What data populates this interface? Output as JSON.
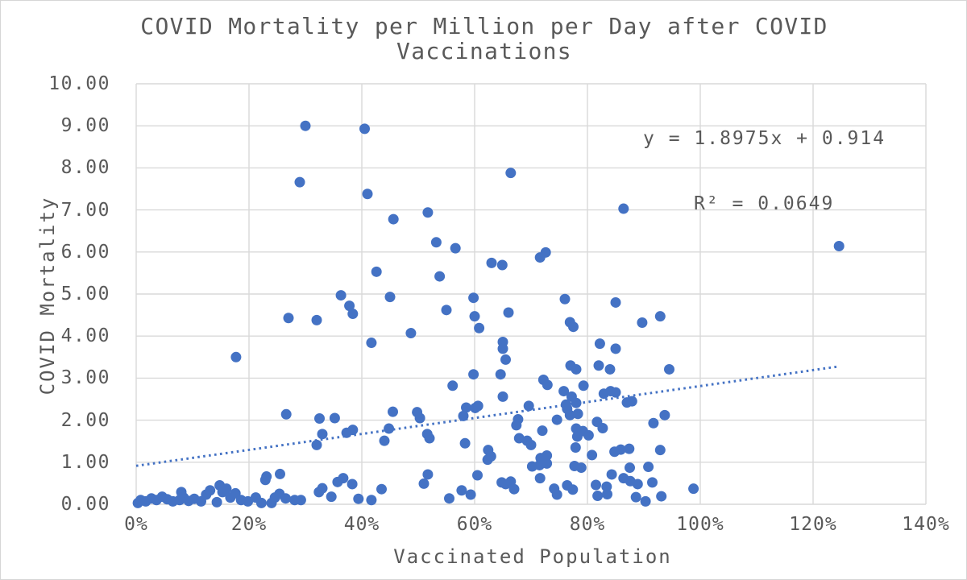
{
  "chart": {
    "title_line1": "COVID Mortality per Million per Day after COVID",
    "title_line2": "Vaccinations",
    "equation_line1": "y = 1.8975x + 0.914",
    "equation_line2": "R² = 0.0649",
    "x_axis": {
      "label": "Vaccinated Population",
      "tick_labels": [
        "0%",
        "20%",
        "40%",
        "60%",
        "80%",
        "100%",
        "120%",
        "140%"
      ],
      "min": 0,
      "max": 140,
      "step": 20
    },
    "y_axis": {
      "label": "COVID Mortality",
      "tick_labels": [
        "0.00",
        "1.00",
        "2.00",
        "3.00",
        "4.00",
        "5.00",
        "6.00",
        "7.00",
        "8.00",
        "9.00",
        "10.00"
      ],
      "min": 0,
      "max": 10,
      "step": 1
    },
    "colors": {
      "point": "#4472C4",
      "trendline": "#4472C4",
      "gridline": "#D9D9D9",
      "text": "#595959",
      "background": "#FFFFFF"
    }
  },
  "chart_data": {
    "type": "scatter",
    "title": "COVID Mortality per Million per Day after COVID Vaccinations",
    "xlabel": "Vaccinated Population",
    "ylabel": "COVID Mortality",
    "xlim": [
      0,
      140
    ],
    "ylim": [
      0,
      10
    ],
    "x_unit": "percent",
    "grid": true,
    "legend": false,
    "trendline": {
      "slope": 1.8975,
      "intercept": 0.914,
      "x_start_pct": 0,
      "x_end_pct": 124.6,
      "style": "dotted",
      "label": "y = 1.8975x + 0.914, R² = 0.0649"
    },
    "points": [
      [
        0.3,
        0.03
      ],
      [
        0.8,
        0.1
      ],
      [
        1.7,
        0.07
      ],
      [
        2.7,
        0.14
      ],
      [
        3.6,
        0.1
      ],
      [
        4.6,
        0.18
      ],
      [
        5.5,
        0.12
      ],
      [
        6.5,
        0.07
      ],
      [
        7.7,
        0.1
      ],
      [
        8.0,
        0.29
      ],
      [
        8.4,
        0.16
      ],
      [
        9.3,
        0.08
      ],
      [
        10.3,
        0.13
      ],
      [
        11.5,
        0.07
      ],
      [
        12.4,
        0.23
      ],
      [
        13.1,
        0.33
      ],
      [
        14.3,
        0.05
      ],
      [
        14.8,
        0.45
      ],
      [
        15.3,
        0.29
      ],
      [
        16.0,
        0.37
      ],
      [
        16.7,
        0.16
      ],
      [
        17.6,
        0.26
      ],
      [
        18.6,
        0.1
      ],
      [
        19.8,
        0.07
      ],
      [
        21.2,
        0.16
      ],
      [
        22.2,
        0.03
      ],
      [
        22.9,
        0.58
      ],
      [
        23.1,
        0.66
      ],
      [
        24.0,
        0.03
      ],
      [
        24.6,
        0.16
      ],
      [
        25.4,
        0.25
      ],
      [
        25.5,
        0.72
      ],
      [
        26.5,
        0.14
      ],
      [
        28.1,
        0.1
      ],
      [
        29.2,
        0.1
      ],
      [
        32.4,
        0.29
      ],
      [
        33.0,
        0.38
      ],
      [
        34.6,
        0.18
      ],
      [
        35.7,
        0.53
      ],
      [
        36.7,
        0.62
      ],
      [
        38.3,
        0.48
      ],
      [
        39.4,
        0.13
      ],
      [
        41.7,
        0.1
      ],
      [
        43.5,
        0.36
      ],
      [
        51.0,
        0.49
      ],
      [
        51.7,
        0.71
      ],
      [
        55.5,
        0.14
      ],
      [
        57.7,
        0.33
      ],
      [
        59.3,
        0.23
      ],
      [
        60.5,
        0.69
      ],
      [
        64.8,
        0.52
      ],
      [
        65.5,
        0.48
      ],
      [
        66.4,
        0.54
      ],
      [
        67.0,
        0.36
      ],
      [
        70.2,
        0.9
      ],
      [
        71.5,
        0.93
      ],
      [
        71.6,
        0.62
      ],
      [
        72.8,
        0.97
      ],
      [
        74.1,
        0.37
      ],
      [
        74.6,
        0.23
      ],
      [
        76.4,
        0.45
      ],
      [
        77.4,
        0.35
      ],
      [
        77.7,
        0.91
      ],
      [
        78.9,
        0.87
      ],
      [
        81.5,
        0.46
      ],
      [
        81.8,
        0.2
      ],
      [
        83.4,
        0.42
      ],
      [
        83.5,
        0.24
      ],
      [
        84.3,
        0.71
      ],
      [
        86.4,
        0.62
      ],
      [
        87.5,
        0.87
      ],
      [
        87.6,
        0.55
      ],
      [
        88.6,
        0.17
      ],
      [
        88.9,
        0.48
      ],
      [
        90.3,
        0.07
      ],
      [
        90.8,
        0.89
      ],
      [
        91.5,
        0.52
      ],
      [
        93.1,
        0.19
      ],
      [
        98.8,
        0.37
      ],
      [
        32.0,
        1.41
      ],
      [
        33.0,
        1.67
      ],
      [
        37.3,
        1.7
      ],
      [
        38.4,
        1.77
      ],
      [
        44.0,
        1.51
      ],
      [
        44.8,
        1.8
      ],
      [
        51.6,
        1.67
      ],
      [
        52.0,
        1.57
      ],
      [
        58.3,
        1.45
      ],
      [
        62.3,
        1.06
      ],
      [
        62.4,
        1.29
      ],
      [
        62.9,
        1.14
      ],
      [
        67.4,
        1.88
      ],
      [
        67.9,
        1.57
      ],
      [
        69.3,
        1.51
      ],
      [
        70.0,
        1.41
      ],
      [
        71.7,
        1.1
      ],
      [
        72.0,
        1.75
      ],
      [
        72.8,
        1.16
      ],
      [
        77.9,
        1.35
      ],
      [
        78.0,
        1.8
      ],
      [
        78.2,
        1.61
      ],
      [
        79.2,
        1.74
      ],
      [
        80.2,
        1.64
      ],
      [
        80.8,
        1.17
      ],
      [
        82.7,
        1.81
      ],
      [
        84.8,
        1.25
      ],
      [
        85.9,
        1.3
      ],
      [
        87.4,
        1.32
      ],
      [
        92.9,
        1.29
      ],
      [
        26.6,
        2.14
      ],
      [
        32.5,
        2.04
      ],
      [
        35.2,
        2.05
      ],
      [
        45.5,
        2.2
      ],
      [
        49.8,
        2.19
      ],
      [
        50.3,
        2.05
      ],
      [
        56.1,
        2.82
      ],
      [
        58.0,
        2.1
      ],
      [
        58.5,
        2.3
      ],
      [
        60.1,
        2.29
      ],
      [
        60.6,
        2.34
      ],
      [
        65.0,
        2.56
      ],
      [
        67.7,
        2.02
      ],
      [
        69.6,
        2.34
      ],
      [
        72.2,
        2.96
      ],
      [
        72.9,
        2.84
      ],
      [
        74.6,
        2.01
      ],
      [
        75.8,
        2.69
      ],
      [
        76.2,
        2.37
      ],
      [
        76.4,
        2.27
      ],
      [
        76.9,
        2.12
      ],
      [
        77.2,
        2.56
      ],
      [
        78.0,
        2.41
      ],
      [
        78.3,
        2.15
      ],
      [
        79.3,
        2.82
      ],
      [
        81.7,
        1.96
      ],
      [
        82.9,
        2.63
      ],
      [
        84.1,
        2.69
      ],
      [
        85.0,
        2.66
      ],
      [
        87.0,
        2.42
      ],
      [
        87.9,
        2.45
      ],
      [
        91.7,
        1.93
      ],
      [
        93.7,
        2.12
      ],
      [
        17.7,
        3.5
      ],
      [
        41.7,
        3.84
      ],
      [
        59.8,
        3.09
      ],
      [
        64.6,
        3.09
      ],
      [
        65.0,
        3.86
      ],
      [
        65.0,
        3.7
      ],
      [
        65.5,
        3.44
      ],
      [
        77.0,
        3.3
      ],
      [
        78.0,
        3.21
      ],
      [
        82.0,
        3.3
      ],
      [
        82.2,
        3.82
      ],
      [
        84.0,
        3.21
      ],
      [
        85.0,
        3.7
      ],
      [
        94.5,
        3.21
      ],
      [
        27.0,
        4.43
      ],
      [
        32.0,
        4.38
      ],
      [
        36.3,
        4.97
      ],
      [
        37.8,
        4.72
      ],
      [
        38.4,
        4.53
      ],
      [
        45.0,
        4.93
      ],
      [
        48.7,
        4.07
      ],
      [
        55.0,
        4.62
      ],
      [
        59.8,
        4.91
      ],
      [
        60.0,
        4.47
      ],
      [
        60.8,
        4.19
      ],
      [
        66.0,
        4.56
      ],
      [
        76.0,
        4.88
      ],
      [
        76.9,
        4.33
      ],
      [
        77.5,
        4.22
      ],
      [
        85.0,
        4.8
      ],
      [
        89.7,
        4.32
      ],
      [
        92.9,
        4.47
      ],
      [
        42.6,
        5.53
      ],
      [
        53.8,
        5.42
      ],
      [
        63.0,
        5.74
      ],
      [
        64.9,
        5.69
      ],
      [
        53.2,
        6.23
      ],
      [
        56.6,
        6.09
      ],
      [
        71.6,
        5.87
      ],
      [
        72.6,
        5.99
      ],
      [
        45.6,
        6.78
      ],
      [
        51.7,
        6.94
      ],
      [
        86.4,
        7.03
      ],
      [
        29.0,
        7.66
      ],
      [
        41.0,
        7.38
      ],
      [
        66.4,
        7.88
      ],
      [
        30.0,
        9.0
      ],
      [
        40.5,
        8.93
      ],
      [
        124.6,
        6.14
      ]
    ]
  }
}
